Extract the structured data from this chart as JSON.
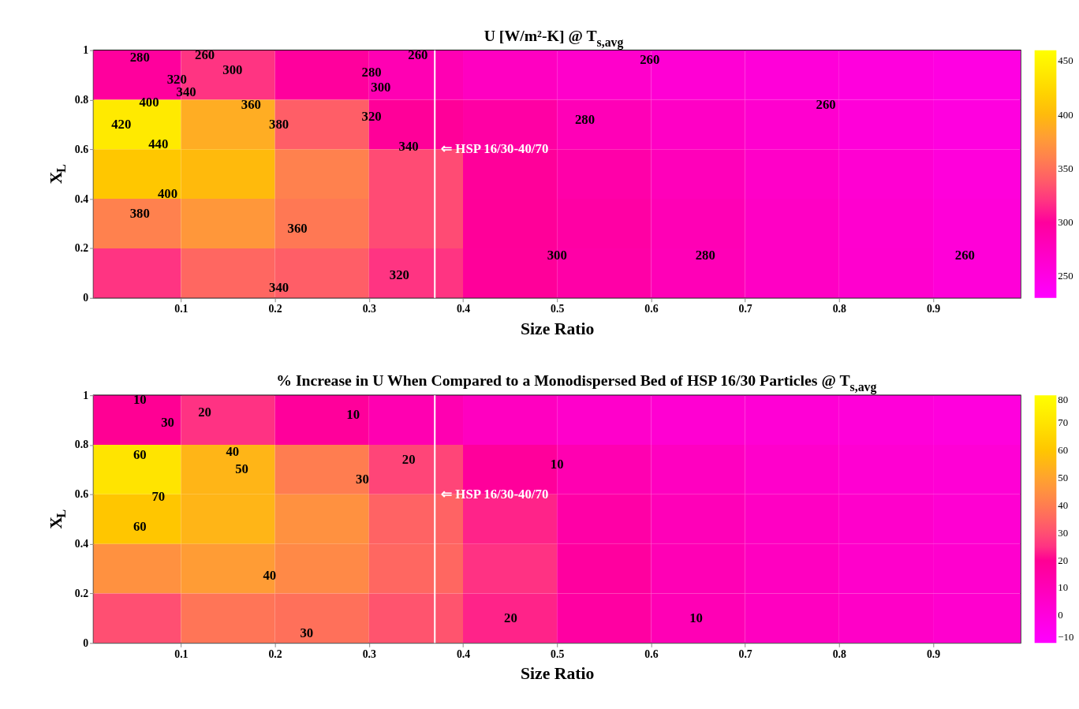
{
  "chart_data": [
    {
      "type": "heatmap",
      "title": "U [W/m²-K] @ T$_{s,avg}$",
      "xlabel": "Size Ratio",
      "ylabel": "X$_{L}$",
      "x": [
        0.05,
        0.15,
        0.25,
        0.35,
        0.45,
        0.55,
        0.65,
        0.75,
        0.85,
        0.95
      ],
      "y": [
        0.9,
        0.7,
        0.5,
        0.3,
        0.1
      ],
      "cells": [
        [
          300,
          320,
          300,
          285,
          275,
          268,
          262,
          258,
          255,
          252
        ],
        [
          440,
          390,
          340,
          303,
          295,
          282,
          272,
          265,
          258,
          254
        ],
        [
          410,
          400,
          360,
          330,
          302,
          292,
          280,
          270,
          263,
          257
        ],
        [
          360,
          375,
          355,
          330,
          303,
          295,
          283,
          273,
          265,
          259
        ],
        [
          320,
          345,
          340,
          320,
          302,
          293,
          282,
          273,
          266,
          259
        ]
      ],
      "xlim": [
        0.007,
        0.993
      ],
      "xticks": [
        0.1,
        0.2,
        0.3,
        0.4,
        0.5,
        0.6,
        0.7,
        0.8,
        0.9
      ],
      "ylim": [
        0,
        1
      ],
      "yticks": [
        0,
        0.2,
        0.4,
        0.6,
        0.8,
        1
      ],
      "clim": [
        230,
        460
      ],
      "cticks": [
        250,
        300,
        350,
        400,
        450
      ],
      "colors": [
        "#ff00ff",
        "#ffff00"
      ],
      "ref_lines": [
        {
          "axis": "x",
          "value": 0.37,
          "label": "⇐ HSP 16/30-40/70",
          "color": "#ffffff"
        }
      ],
      "annotations": [
        "280",
        "260",
        "300",
        "320",
        "340",
        "400",
        "360",
        "380",
        "420",
        "440",
        "400",
        "380",
        "360",
        "340",
        "320",
        "320",
        "340",
        "300",
        "280",
        "260",
        "260",
        "280",
        "260",
        "300",
        "280",
        "260"
      ]
    },
    {
      "type": "heatmap",
      "title": "% Increase in U When Compared to a Monodispersed Bed of HSP 16/30 Particles @ T$_{s,avg}$",
      "xlabel": "Size Ratio",
      "ylabel": "X$_{L}$",
      "x": [
        0.05,
        0.15,
        0.25,
        0.35,
        0.45,
        0.55,
        0.65,
        0.75,
        0.85,
        0.95
      ],
      "y": [
        0.9,
        0.7,
        0.5,
        0.3,
        0.1
      ],
      "cells": [
        [
          20,
          25,
          18,
          12,
          8,
          5,
          3,
          2,
          1,
          0
        ],
        [
          70,
          55,
          40,
          28,
          18,
          12,
          8,
          5,
          3,
          2
        ],
        [
          60,
          55,
          45,
          34,
          23,
          15,
          10,
          7,
          5,
          3
        ],
        [
          45,
          48,
          43,
          35,
          25,
          17,
          11,
          8,
          5,
          4
        ],
        [
          30,
          38,
          37,
          31,
          23,
          16,
          11,
          8,
          6,
          4
        ]
      ],
      "xlim": [
        0.007,
        0.993
      ],
      "xticks": [
        0.1,
        0.2,
        0.3,
        0.4,
        0.5,
        0.6,
        0.7,
        0.8,
        0.9
      ],
      "ylim": [
        0,
        1
      ],
      "yticks": [
        0,
        0.2,
        0.4,
        0.6,
        0.8,
        1
      ],
      "clim": [
        -10,
        80
      ],
      "cticks": [
        -10,
        0,
        10,
        20,
        30,
        40,
        50,
        60,
        70,
        80
      ],
      "colors": [
        "#ff00ff",
        "#ffff00"
      ],
      "ref_lines": [
        {
          "axis": "x",
          "value": 0.37,
          "label": "⇐ HSP 16/30-40/70",
          "color": "#ffffff"
        }
      ],
      "annotations": [
        "10",
        "20",
        "30",
        "10",
        "60",
        "40",
        "50",
        "20",
        "30",
        "10",
        "70",
        "60",
        "40",
        "30",
        "20",
        "10"
      ]
    }
  ]
}
